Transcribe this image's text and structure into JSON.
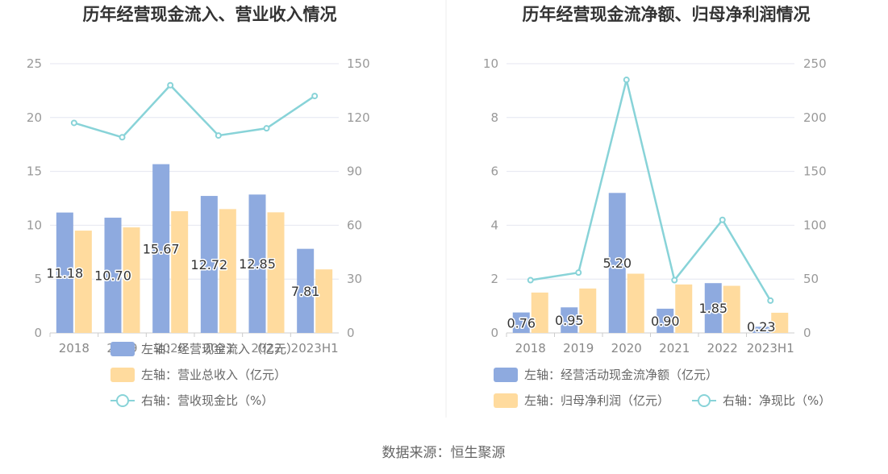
{
  "source_label": "数据来源：恒生聚源",
  "chart_data": [
    {
      "type": "bar",
      "title": "历年经营现金流入、营业收入情况",
      "categories": [
        "2018",
        "2019",
        "2020",
        "2021",
        "2022",
        "2023H1"
      ],
      "y_left": {
        "range": [
          0,
          25
        ],
        "ticks": [
          "0",
          "5",
          "10",
          "15",
          "20",
          "25"
        ]
      },
      "y_right": {
        "range": [
          0,
          150
        ],
        "ticks": [
          "0",
          "30",
          "60",
          "90",
          "120",
          "150"
        ]
      },
      "grid": true,
      "legend_position": "bottom",
      "series": [
        {
          "name": "左轴：经营现金流入（亿元）",
          "kind": "bar",
          "axis": "left",
          "color": "#8eaadf",
          "values": [
            11.18,
            10.7,
            15.67,
            12.72,
            12.85,
            7.81
          ],
          "labels": [
            "11.18",
            "10.70",
            "15.67",
            "12.72",
            "12.85",
            "7.81"
          ]
        },
        {
          "name": "左轴：营业总收入（亿元）",
          "kind": "bar",
          "axis": "left",
          "color": "#ffdb9e",
          "values": [
            9.5,
            9.8,
            11.3,
            11.5,
            11.2,
            5.9
          ]
        },
        {
          "name": "右轴：营收现金比（%）",
          "kind": "line",
          "axis": "right",
          "color": "#88d3d8",
          "values": [
            117,
            109,
            138,
            110,
            114,
            132
          ]
        }
      ]
    },
    {
      "type": "bar",
      "title": "历年经营现金流净额、归母净利润情况",
      "categories": [
        "2018",
        "2019",
        "2020",
        "2021",
        "2022",
        "2023H1"
      ],
      "y_left": {
        "range": [
          0,
          10
        ],
        "ticks": [
          "0",
          "2",
          "4",
          "6",
          "8",
          "10"
        ]
      },
      "y_right": {
        "range": [
          0,
          250
        ],
        "ticks": [
          "0",
          "50",
          "100",
          "150",
          "200",
          "250"
        ]
      },
      "grid": true,
      "legend_position": "bottom",
      "series": [
        {
          "name": "左轴：经营活动现金流净额（亿元）",
          "kind": "bar",
          "axis": "left",
          "color": "#8eaadf",
          "values": [
            0.76,
            0.95,
            5.2,
            0.9,
            1.85,
            0.23
          ],
          "labels": [
            "0.76",
            "0.95",
            "5.20",
            "0.90",
            "1.85",
            "0.23"
          ]
        },
        {
          "name": "左轴：归母净利润（亿元）",
          "kind": "bar",
          "axis": "left",
          "color": "#ffdb9e",
          "values": [
            1.5,
            1.65,
            2.2,
            1.8,
            1.75,
            0.75
          ]
        },
        {
          "name": "右轴：净现比（%）",
          "kind": "line",
          "axis": "right",
          "color": "#88d3d8",
          "values": [
            49,
            56,
            235,
            49,
            105,
            30
          ]
        }
      ]
    }
  ]
}
